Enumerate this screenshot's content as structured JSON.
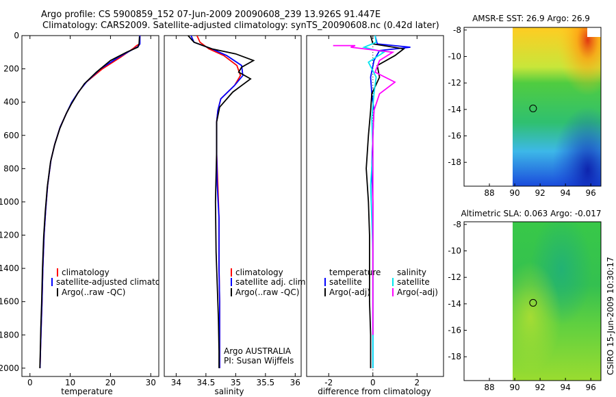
{
  "title": {
    "line1": "Argo profile: CS 5900859_152 07-Jun-2009 20090608_239 13.926S 91.447E",
    "line2": "Climatology: CARS2009. Satellite-adjusted climatology: synTS_20090608.nc (0.42d later)"
  },
  "colors": {
    "climatology": "#ff0000",
    "satellite": "#0000ff",
    "argo": "#000000",
    "salinity_sat": "#00e5ee",
    "salinity_argo": "#ff00ff"
  },
  "chart_data": [
    {
      "id": "temperature",
      "type": "line",
      "xlabel": "temperature",
      "ylabel": "",
      "xlim": [
        -2,
        32
      ],
      "ylim": [
        2050,
        0
      ],
      "xticks": [
        0,
        10,
        20,
        30
      ],
      "yticks": [
        0,
        200,
        400,
        600,
        800,
        1000,
        1200,
        1400,
        1600,
        1800,
        2000
      ],
      "series": [
        {
          "name": "climatology",
          "color": "#ff0000",
          "x": [
            27.3,
            27.2,
            26.5,
            25.5,
            22.5,
            18,
            14,
            12,
            10.5,
            9.2,
            7.5,
            6.2,
            5.2,
            4.4,
            3.9,
            3.5,
            3.2,
            3.0,
            2.8,
            2.6,
            2.5
          ],
          "y": [
            0,
            50,
            60,
            80,
            130,
            200,
            280,
            340,
            400,
            460,
            550,
            650,
            750,
            900,
            1050,
            1200,
            1400,
            1600,
            1750,
            1900,
            2000
          ]
        },
        {
          "name": "satellite-adjusted climatology",
          "color": "#0000ff",
          "x": [
            27.3,
            27.3,
            26.9,
            25.8,
            22,
            17.5,
            14,
            12,
            10.4,
            9.2,
            7.5,
            6.2,
            5.2,
            4.4,
            3.9,
            3.5,
            3.2,
            3.0,
            2.8,
            2.6,
            2.5
          ],
          "y": [
            0,
            50,
            65,
            80,
            130,
            200,
            280,
            340,
            400,
            460,
            550,
            650,
            750,
            900,
            1050,
            1200,
            1400,
            1600,
            1750,
            1900,
            2000
          ]
        },
        {
          "name": "Argo(..raw -QC)",
          "color": "#000000",
          "x": [
            27.2,
            27.1,
            26.8,
            24,
            20,
            16.5,
            13.5,
            11.8,
            10.3,
            9.0,
            7.4,
            6.1,
            5.1,
            4.3,
            3.8,
            3.4,
            3.1,
            2.9,
            2.7,
            2.55,
            2.45
          ],
          "y": [
            5,
            50,
            70,
            100,
            150,
            220,
            290,
            350,
            410,
            470,
            560,
            660,
            760,
            910,
            1060,
            1210,
            1410,
            1610,
            1760,
            1910,
            2000
          ]
        }
      ],
      "legend": {
        "location": "bottom-right",
        "entries": [
          "climatology",
          "satellite-adjusted climatology",
          "Argo(..raw -QC)"
        ]
      }
    },
    {
      "id": "salinity",
      "type": "line",
      "xlabel": "salinity",
      "ylabel": "",
      "xlim": [
        33.8,
        36.1
      ],
      "ylim": [
        2050,
        0
      ],
      "xticks": [
        34,
        34.5,
        35,
        35.5,
        36
      ],
      "yticks": [],
      "series": [
        {
          "name": "climatology",
          "color": "#ff0000",
          "x": [
            34.35,
            34.4,
            34.55,
            34.8,
            35.02,
            35.08,
            34.98,
            34.75,
            34.7,
            34.68,
            34.68,
            34.7,
            34.72,
            34.72,
            34.73,
            34.73,
            34.73
          ],
          "y": [
            0,
            40,
            80,
            120,
            180,
            240,
            300,
            380,
            450,
            520,
            700,
            900,
            1100,
            1400,
            1600,
            1800,
            2000
          ]
        },
        {
          "name": "satellite adj. clim.",
          "color": "#0000ff",
          "x": [
            34.25,
            34.3,
            34.6,
            34.85,
            35.1,
            35.12,
            34.98,
            34.75,
            34.7,
            34.68,
            34.68,
            34.69,
            34.72,
            34.72,
            34.73,
            34.73,
            34.73
          ],
          "y": [
            0,
            40,
            80,
            120,
            180,
            240,
            300,
            380,
            450,
            520,
            700,
            900,
            1100,
            1400,
            1600,
            1800,
            2000
          ]
        },
        {
          "name": "Argo(..raw -QC)",
          "color": "#000000",
          "x": [
            34.2,
            34.3,
            34.6,
            35.0,
            35.3,
            35.1,
            35.05,
            35.25,
            34.95,
            34.73,
            34.68,
            34.68,
            34.66,
            34.67,
            34.69,
            34.71,
            34.72,
            34.72
          ],
          "y": [
            0,
            40,
            80,
            110,
            150,
            190,
            220,
            260,
            340,
            430,
            520,
            700,
            1000,
            1300,
            1500,
            1700,
            1900,
            2000
          ]
        }
      ],
      "legend": {
        "location": "bottom-right",
        "entries": [
          "climatology",
          "satellite adj. clim.",
          "Argo(..raw -QC)"
        ]
      },
      "annotation": {
        "line1": "Argo AUSTRALIA",
        "line2": "PI: Susan Wijffels"
      }
    },
    {
      "id": "difference",
      "type": "line",
      "xlabel": "difference from climatology",
      "ylabel": "",
      "xlim": [
        -3,
        3.2
      ],
      "ylim": [
        2050,
        0
      ],
      "xticks": [
        -2,
        0,
        2
      ],
      "yticks": [],
      "series": [
        {
          "name": "temperature satellite",
          "color": "#0000ff",
          "x": [
            0.1,
            0.2,
            1.7,
            0.3,
            0.05,
            -0.1,
            -0.05,
            0.05,
            0.0,
            -0.05,
            0.0,
            0.0,
            0.0,
            0.0,
            0.0,
            0.0
          ],
          "y": [
            0,
            50,
            70,
            90,
            150,
            250,
            350,
            450,
            600,
            800,
            1000,
            1200,
            1400,
            1600,
            1800,
            2000
          ]
        },
        {
          "name": "temperature Argo(-adj)",
          "color": "#000000",
          "x": [
            -0.1,
            0.0,
            1.4,
            1.0,
            0.2,
            0.3,
            -0.05,
            -0.1,
            -0.2,
            -0.3,
            -0.2,
            -0.15,
            -0.15,
            -0.15,
            -0.1,
            -0.1
          ],
          "y": [
            0,
            50,
            80,
            120,
            180,
            250,
            350,
            450,
            600,
            800,
            1000,
            1200,
            1400,
            1600,
            1800,
            2000
          ]
        },
        {
          "name": "salinity satellite",
          "color": "#00e5ee",
          "x": [
            0.1,
            0.15,
            -0.4,
            0.5,
            -0.2,
            0.15,
            0.05,
            -0.05,
            0.0,
            -0.1,
            -0.05,
            0.0,
            0.0,
            0.0,
            0.0,
            0.0
          ],
          "y": [
            0,
            40,
            70,
            100,
            160,
            250,
            350,
            500,
            700,
            900,
            1100,
            1300,
            1500,
            1700,
            1900,
            2000
          ]
        },
        {
          "name": "salinity Argo(-adj)",
          "color": "#ff00ff",
          "x": [
            -1.8,
            -0.8,
            -1.0,
            0.9,
            0.3,
            0.1,
            1.0,
            0.3,
            0.05,
            0.0,
            0.0,
            0.0,
            0.0,
            0.0,
            0.0,
            0.0
          ],
          "y": [
            60,
            60,
            70,
            100,
            150,
            220,
            280,
            350,
            450,
            600,
            800,
            1000,
            1200,
            1400,
            1600,
            1800
          ]
        }
      ],
      "legend": {
        "location": "bottom-center",
        "entries": [
          "temperature",
          "satellite",
          "Argo(-adj)",
          "salinity",
          "satellite",
          "Argo(-adj)"
        ]
      }
    },
    {
      "id": "sst_map",
      "type": "heatmap",
      "title": "AMSR-E SST: 26.9  Argo: 26.9",
      "xlim": [
        86,
        96.8
      ],
      "ylim": [
        -19.8,
        -7.8
      ],
      "xticks": [
        88,
        90,
        92,
        94,
        96
      ],
      "yticks": [
        -8,
        -10,
        -12,
        -14,
        -16,
        -18
      ],
      "data_xrange": [
        90,
        96.8
      ],
      "marker": {
        "lon": 91.447,
        "lat": -13.926
      }
    },
    {
      "id": "sla_map",
      "type": "heatmap",
      "title": "Altimetric SLA: 0.063  Argo: -0.017",
      "xlim": [
        86,
        96.8
      ],
      "ylim": [
        -19.8,
        -7.8
      ],
      "xticks": [
        88,
        90,
        92,
        94,
        96
      ],
      "yticks": [
        -8,
        -10,
        -12,
        -14,
        -16,
        -18
      ],
      "data_xrange": [
        90,
        96.8
      ],
      "marker": {
        "lon": 91.447,
        "lat": -13.926
      }
    }
  ],
  "credit": "CSIRO 15-Jun-2009 10:30:17"
}
